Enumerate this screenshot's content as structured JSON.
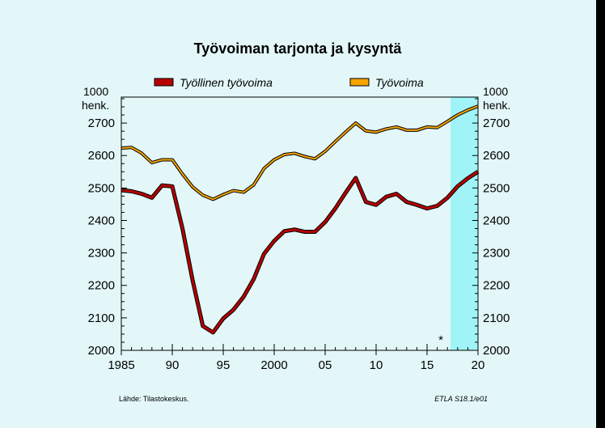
{
  "chart_data": {
    "type": "line",
    "title": "Työvoiman tarjonta ja kysyntä",
    "unit_label": "1000 henk.",
    "unit_line1": "1000",
    "unit_line2": "henk.",
    "source": "Lähde:   Tilastokeskus.",
    "code": "ETLA S18.1/e01",
    "forecast_marker": "*",
    "xlim": [
      1985,
      2020
    ],
    "ylim": [
      2000,
      2780
    ],
    "forecast_start": 2017.3,
    "colors": {
      "background": "#e3f7f9",
      "forecast": "#a0f4f7",
      "employed": "#b50000",
      "labour_force": "#f6a500"
    },
    "x_ticks": [
      {
        "v": 1985,
        "label": "1985"
      },
      {
        "v": 1990,
        "label": "90"
      },
      {
        "v": 1995,
        "label": "95"
      },
      {
        "v": 2000,
        "label": "2000"
      },
      {
        "v": 2005,
        "label": "05"
      },
      {
        "v": 2010,
        "label": "10"
      },
      {
        "v": 2015,
        "label": "15"
      },
      {
        "v": 2020,
        "label": "20"
      }
    ],
    "y_ticks": [
      {
        "v": 2000,
        "label": "2000"
      },
      {
        "v": 2100,
        "label": "2100"
      },
      {
        "v": 2200,
        "label": "2200"
      },
      {
        "v": 2300,
        "label": "2300"
      },
      {
        "v": 2400,
        "label": "2400"
      },
      {
        "v": 2500,
        "label": "2500"
      },
      {
        "v": 2600,
        "label": "2600"
      },
      {
        "v": 2700,
        "label": "2700"
      }
    ],
    "series": [
      {
        "name": "Työllinen työvoima",
        "x": [
          1985,
          1986,
          1987,
          1988,
          1989,
          1990,
          1991,
          1992,
          1993,
          1994,
          1995,
          1996,
          1997,
          1998,
          1999,
          2000,
          2001,
          2002,
          2003,
          2004,
          2005,
          2006,
          2007,
          2008,
          2009,
          2010,
          2011,
          2012,
          2013,
          2014,
          2015,
          2016,
          2017,
          2018,
          2019,
          2020
        ],
        "values": [
          2493,
          2490,
          2482,
          2470,
          2508,
          2505,
          2375,
          2215,
          2075,
          2055,
          2098,
          2125,
          2165,
          2220,
          2297,
          2337,
          2367,
          2372,
          2365,
          2365,
          2395,
          2437,
          2485,
          2531,
          2457,
          2448,
          2473,
          2482,
          2457,
          2448,
          2437,
          2445,
          2470,
          2505,
          2530,
          2550
        ]
      },
      {
        "name": "Työvoima",
        "x": [
          1985,
          1986,
          1987,
          1988,
          1989,
          1990,
          1991,
          1992,
          1993,
          1994,
          1995,
          1996,
          1997,
          1998,
          1999,
          2000,
          2001,
          2002,
          2003,
          2004,
          2005,
          2006,
          2007,
          2008,
          2009,
          2010,
          2011,
          2012,
          2013,
          2014,
          2015,
          2016,
          2017,
          2018,
          2019,
          2020
        ],
        "values": [
          2623,
          2625,
          2607,
          2578,
          2587,
          2587,
          2543,
          2503,
          2478,
          2465,
          2480,
          2492,
          2487,
          2510,
          2560,
          2587,
          2603,
          2607,
          2597,
          2590,
          2613,
          2643,
          2672,
          2700,
          2676,
          2672,
          2682,
          2688,
          2678,
          2678,
          2688,
          2686,
          2705,
          2725,
          2740,
          2752
        ]
      }
    ]
  }
}
